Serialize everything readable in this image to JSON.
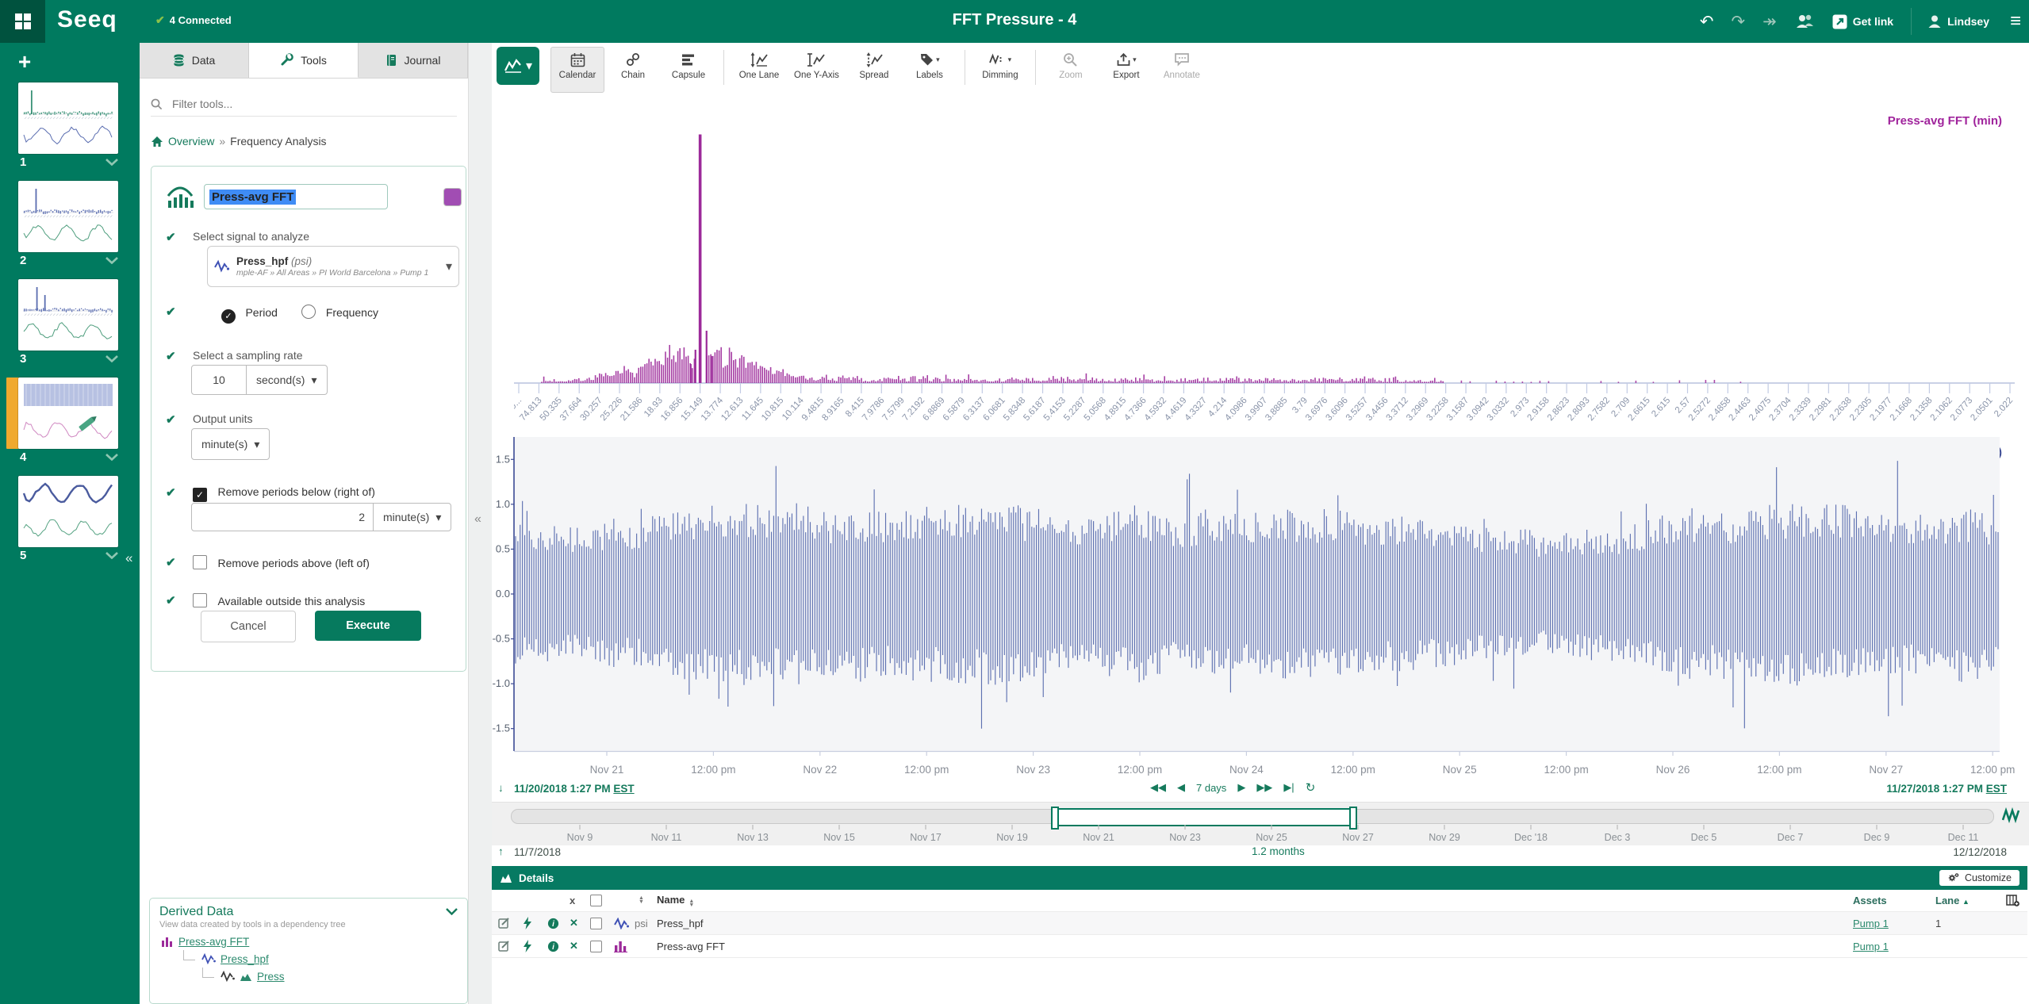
{
  "topbar": {
    "connected": "4 Connected",
    "title": "FFT Pressure - 4",
    "get_link": "Get link",
    "user": "Lindsey",
    "logo": "Seeq"
  },
  "worksheets": {
    "items": [
      {
        "num": "1",
        "active": false,
        "top": {
          "type": "spectrum",
          "color": "#3a9277",
          "spikes": [
            0.08
          ]
        },
        "bottom": {
          "type": "wave",
          "color": "#5a6db0"
        }
      },
      {
        "num": "2",
        "active": false,
        "top": {
          "type": "spectrum",
          "color": "#5a6db0",
          "spikes": [
            0.13
          ]
        },
        "bottom": {
          "type": "wave",
          "color": "#4f9e7e"
        }
      },
      {
        "num": "3",
        "active": false,
        "top": {
          "type": "spectrum",
          "color": "#5a6db0",
          "spikes": [
            0.14,
            0.23
          ]
        },
        "bottom": {
          "type": "wave",
          "color": "#4f9e7e"
        }
      },
      {
        "num": "4",
        "active": true,
        "pencil": true,
        "top": {
          "type": "band",
          "color": "#aab6dd"
        },
        "bottom": {
          "type": "wave",
          "color": "#cf86c0"
        }
      },
      {
        "num": "5",
        "active": false,
        "top": {
          "type": "thickwave",
          "color": "#4a5b9e"
        },
        "bottom": {
          "type": "wave",
          "color": "#56a383"
        }
      }
    ]
  },
  "panel": {
    "tabs": [
      {
        "label": "Data",
        "active": false
      },
      {
        "label": "Tools",
        "active": true
      },
      {
        "label": "Journal",
        "active": false
      }
    ],
    "filter_placeholder": "Filter tools...",
    "breadcrumb": {
      "home": "Overview",
      "sep": "»",
      "current": "Frequency Analysis"
    },
    "tool": {
      "name_value": "Press-avg FFT",
      "color_swatch": "#a14db3",
      "signal_label": "Select signal to analyze",
      "signal_name": "Press_hpf",
      "signal_unit": "(psi)",
      "signal_path": "mple-AF » All Areas » PI World Barcelona » Pump 1",
      "radio_period": "Period",
      "radio_frequency": "Frequency",
      "sampling_label": "Select a sampling rate",
      "sampling_value": "10",
      "sampling_unit": "second(s)",
      "output_label": "Output units",
      "output_unit": "minute(s)",
      "below_label": "Remove periods below (right of)",
      "below_value": "2",
      "below_unit": "minute(s)",
      "above_label": "Remove periods above (left of)",
      "outside_label": "Available outside this analysis",
      "cancel": "Cancel",
      "execute": "Execute"
    },
    "derived": {
      "title": "Derived Data",
      "subtitle": "View data created by tools in a dependency tree",
      "tree": [
        {
          "label": "Press-avg FFT",
          "icons": [
            "hist-magenta"
          ],
          "indent": 0
        },
        {
          "label": "Press_hpf",
          "icons": [
            "signal-blue"
          ],
          "indent": 1
        },
        {
          "label": "Press",
          "icons": [
            "signal-dark",
            "area-green"
          ],
          "indent": 2
        }
      ]
    }
  },
  "toolbar": {
    "buttons": [
      {
        "key": "calendar",
        "label": "Calendar",
        "active": true
      },
      {
        "key": "chain",
        "label": "Chain"
      },
      {
        "key": "capsule",
        "label": "Capsule"
      },
      {
        "sep": true
      },
      {
        "key": "onelane",
        "label": "One Lane"
      },
      {
        "key": "oneyaxis",
        "label": "One Y-Axis"
      },
      {
        "key": "spread",
        "label": "Spread"
      },
      {
        "key": "labels",
        "label": "Labels",
        "caret": true
      },
      {
        "sep": true
      },
      {
        "key": "dimming",
        "label": "Dimming",
        "caret": true
      },
      {
        "sep": true
      },
      {
        "key": "zoom",
        "label": "Zoom",
        "disabled": true
      },
      {
        "key": "export",
        "label": "Export",
        "caret": true
      },
      {
        "key": "annotate",
        "label": "Annotate",
        "disabled": true
      }
    ]
  },
  "chart_data": [
    {
      "type": "bar",
      "title": "Press-avg FFT (min)",
      "series_color": "#9c2a9a",
      "x_axis_note": "period (minutes), reciprocal-frequency scale",
      "x_tick_labels": [
        "149...",
        "74.813",
        "50.335",
        "37.664",
        "30.257",
        "25.226",
        "21.586",
        "18.93",
        "16.856",
        "15.149",
        "13.774",
        "12.613",
        "11.645",
        "10.815",
        "10.114",
        "9.4815",
        "8.9165",
        "8.415",
        "7.9786",
        "7.5799",
        "7.2192",
        "6.8869",
        "6.5879",
        "6.3137",
        "6.0681",
        "5.8348",
        "5.6187",
        "5.4153",
        "5.2287",
        "5.0568",
        "4.8915",
        "4.7366",
        "4.5932",
        "4.4619",
        "4.3327",
        "4.214",
        "4.0986",
        "3.9907",
        "3.8885",
        "3.79",
        "3.6976",
        "3.6096",
        "3.5257",
        "3.4456",
        "3.3712",
        "3.2969",
        "3.2258",
        "3.1587",
        "3.0942",
        "3.0332",
        "2.973",
        "2.9158",
        "2.8623",
        "2.8093",
        "2.7582",
        "2.709",
        "2.6615",
        "2.615",
        "2.57",
        "2.5272",
        "2.4858",
        "2.4463",
        "2.4075",
        "2.3704",
        "2.3339",
        "2.2981",
        "2.2638",
        "2.2305",
        "2.1977",
        "2.1668",
        "2.1358",
        "2.1062",
        "2.0773",
        "2.0501",
        "2.022"
      ],
      "peak": {
        "x_tick_label": "15.149",
        "tick_index": 9,
        "rel_height": 0.95
      },
      "noise_floor": {
        "dense_frac_range": [
          0.015,
          0.62
        ],
        "sparse_frac_range": [
          0.62,
          0.82
        ],
        "typ_rel_height": 0.02,
        "mound_rel_height": 0.09
      },
      "ylim": [
        0,
        1
      ]
    },
    {
      "type": "line",
      "title": "Press_hpf (psi)",
      "series_color": "#4a5fa8",
      "y_ticks": [
        "1.5",
        "1.0",
        "0.5",
        "0.0",
        "-0.5",
        "-1.0",
        "-1.5"
      ],
      "ylim": [
        -1.75,
        1.75
      ],
      "x_tick_labels": [
        "Nov 21",
        "12:00 pm",
        "Nov 22",
        "12:00 pm",
        "Nov 23",
        "12:00 pm",
        "Nov 24",
        "12:00 pm",
        "Nov 25",
        "12:00 pm",
        "Nov 26",
        "12:00 pm",
        "Nov 27",
        "12:00 pm"
      ],
      "x_range": [
        "11/20/2018 1:27 PM EST",
        "11/27/2018 1:27 PM EST"
      ],
      "typical_amplitude": 0.85,
      "max_amplitude": 1.5,
      "description": "dense high-frequency pressure oscillation centered on 0"
    }
  ],
  "range": {
    "start": "11/20/2018 1:27 PM",
    "start_tz": "EST",
    "step_label": "7 days",
    "end": "11/27/2018 1:27 PM",
    "end_tz": "EST"
  },
  "timebar": {
    "ticks": [
      "Nov 9",
      "Nov 11",
      "Nov 13",
      "Nov 15",
      "Nov 17",
      "Nov 19",
      "Nov 21",
      "Nov 23",
      "Nov 25",
      "Nov 27",
      "Nov 29",
      "Dec '18",
      "Dec 3",
      "Dec 5",
      "Dec 7",
      "Dec 9",
      "Dec 11"
    ],
    "start": "11/7/2018",
    "duration": "1.2 months",
    "end": "12/12/2018"
  },
  "details": {
    "title": "Details",
    "customize": "Customize",
    "columns": {
      "remove": "x",
      "name": "Name",
      "assets": "Assets",
      "lane": "Lane"
    },
    "rows": [
      {
        "icon": "signal-blue",
        "unit": "psi",
        "name": "Press_hpf",
        "asset": "Pump 1",
        "lane": "1"
      },
      {
        "icon": "hist-magenta",
        "unit": "",
        "name": "Press-avg FFT",
        "asset": "Pump 1",
        "lane": ""
      }
    ]
  },
  "colors": {
    "brand_green": "#007a5f",
    "accent_green": "#157a5c",
    "link_green": "#2c8a6e",
    "magenta": "#9c2a9a",
    "indigo": "#4a5fa8",
    "active_orange": "#f0a92e",
    "selection_blue": "#3f8cf5"
  }
}
